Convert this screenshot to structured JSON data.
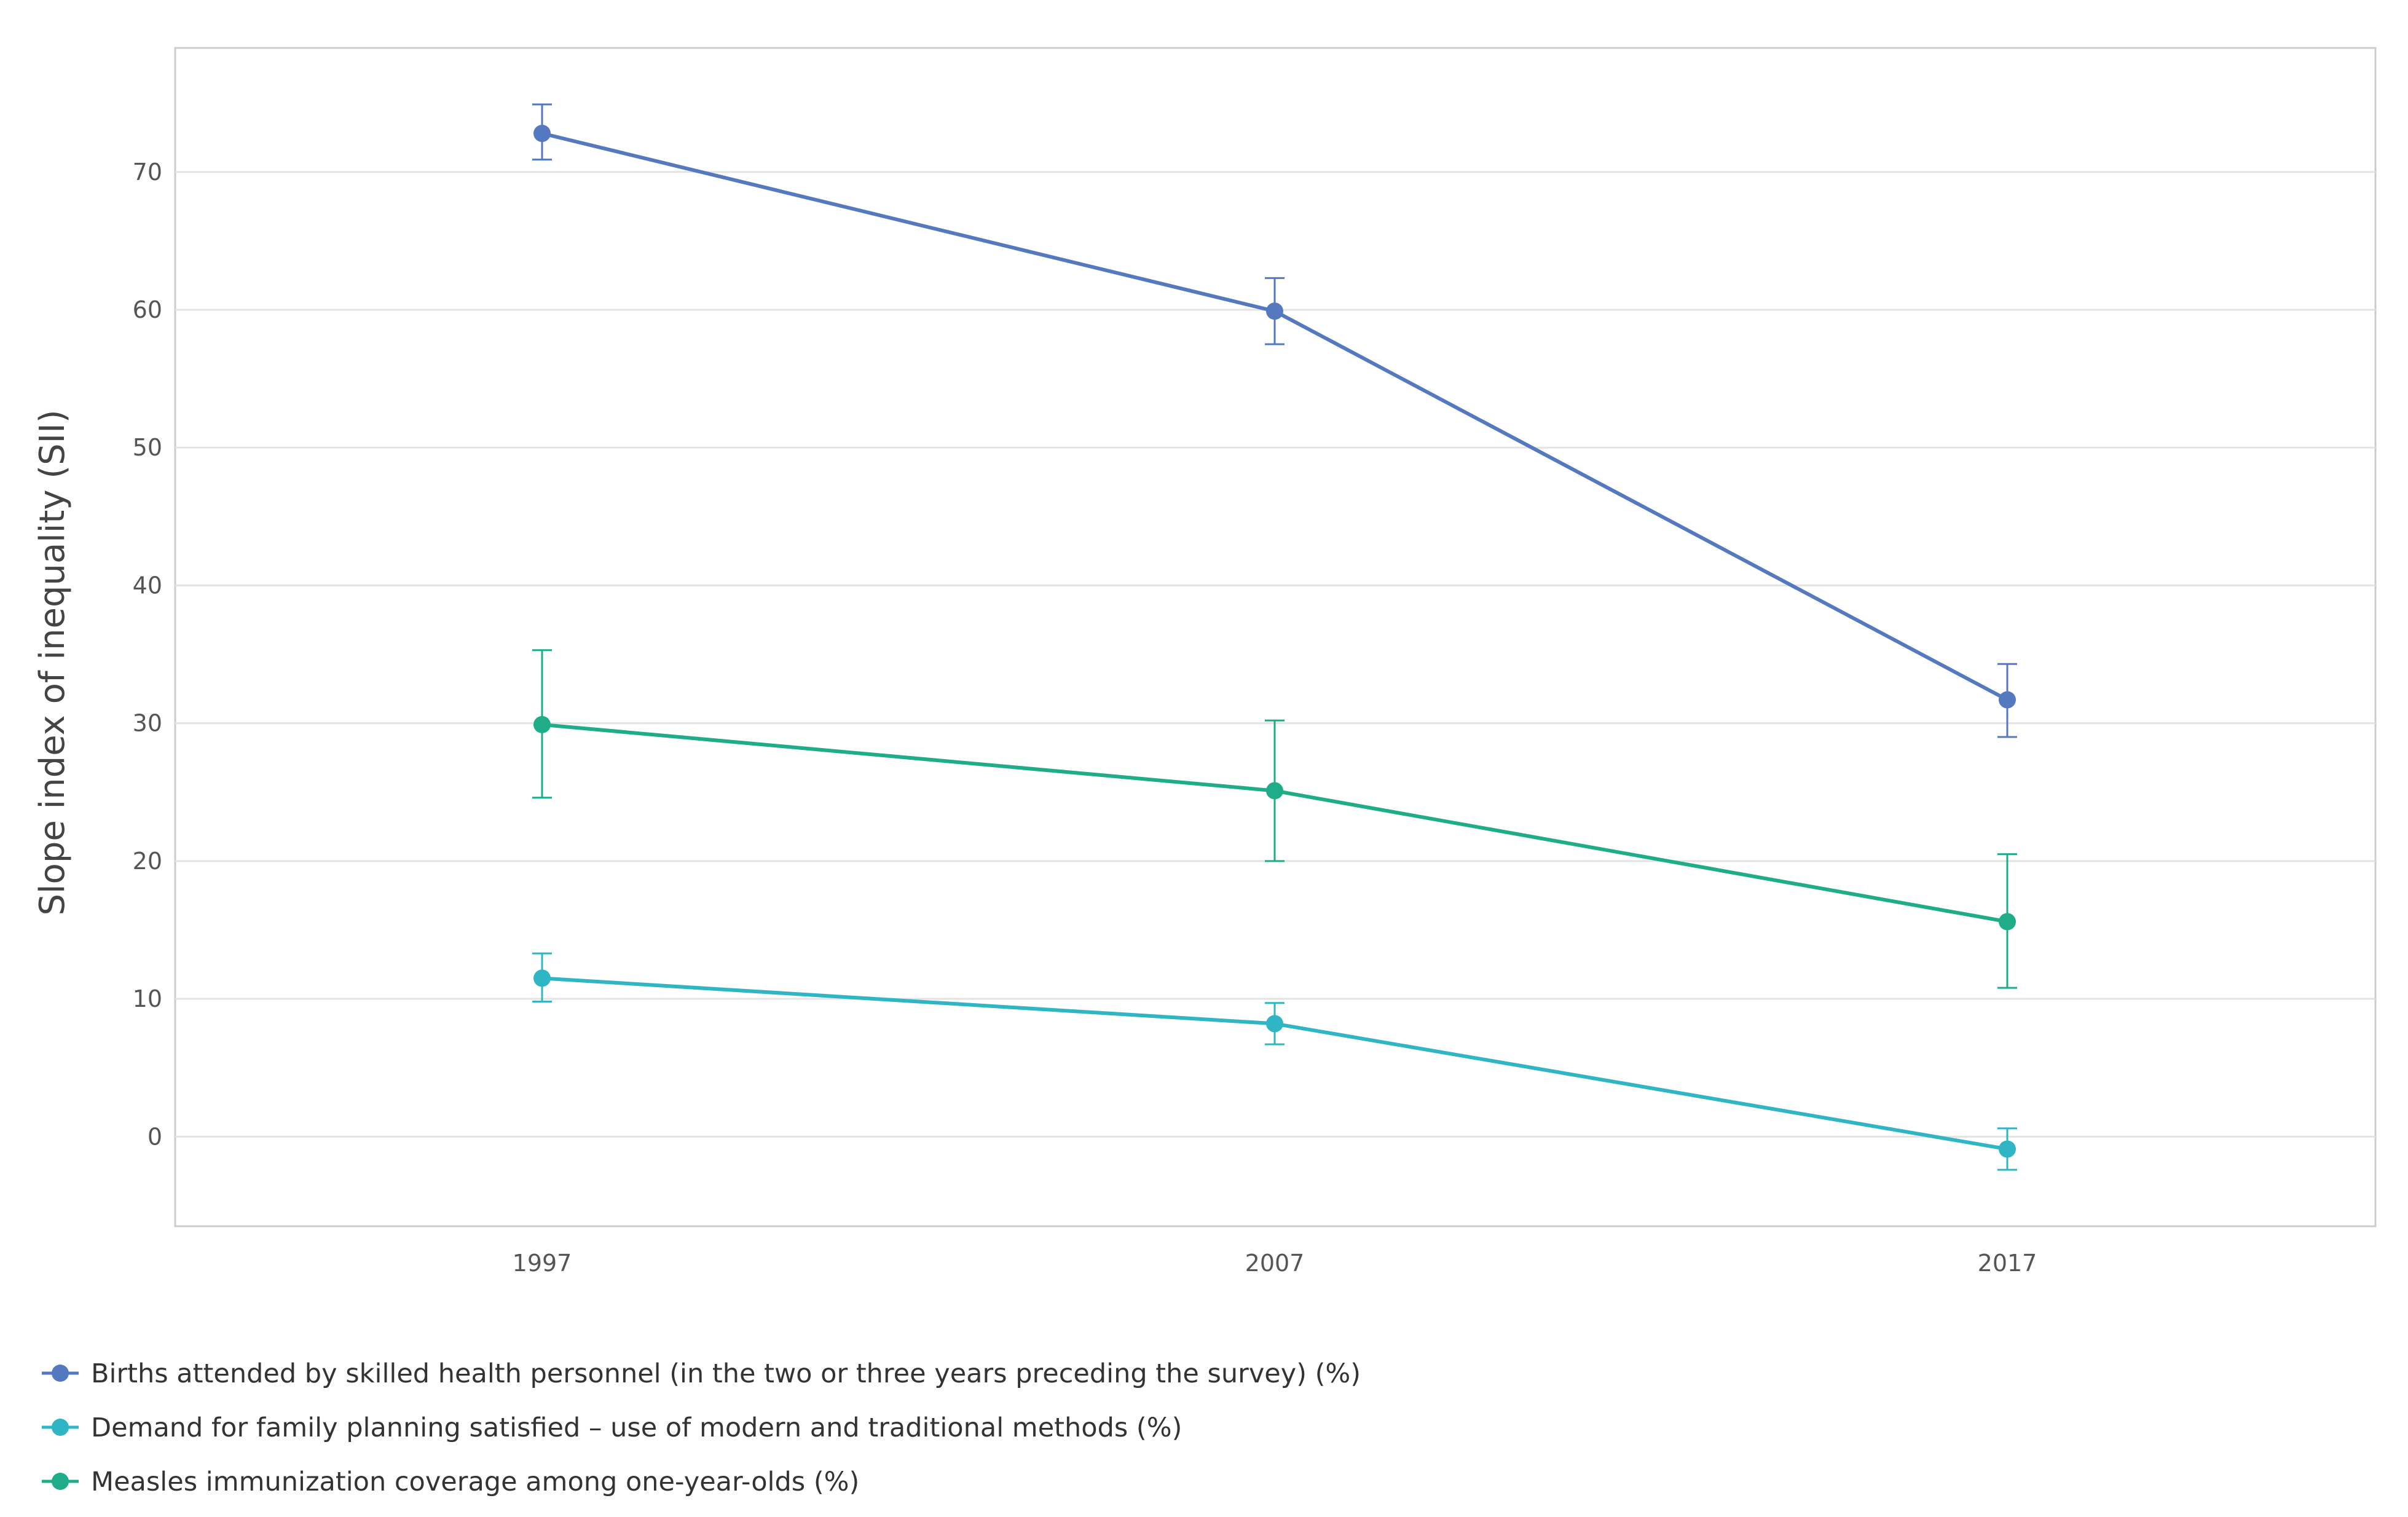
{
  "chart_data": {
    "type": "line",
    "x": [
      "1997",
      "2007",
      "2017"
    ],
    "ylabel": "Slope index of inequality (SII)",
    "ylim": [
      -6.5,
      79
    ],
    "yticks": [
      0,
      10,
      20,
      30,
      40,
      50,
      60,
      70
    ],
    "grid": true,
    "legend_position": "bottom-left",
    "series": [
      {
        "name": "Births attended by skilled health personnel (in the two or three years preceding the survey) (%)",
        "color": "#5479BE",
        "values": [
          72.8,
          59.9,
          31.7
        ],
        "error_low": [
          70.9,
          57.5,
          29.0
        ],
        "error_high": [
          74.9,
          62.3,
          34.3
        ]
      },
      {
        "name": "Demand for family planning satisfied – use of modern and traditional methods (%)",
        "color": "#2FB5C3",
        "values": [
          11.5,
          8.2,
          -0.9
        ],
        "error_low": [
          9.8,
          6.7,
          -2.4
        ],
        "error_high": [
          13.3,
          9.7,
          0.6
        ]
      },
      {
        "name": "Measles immunization coverage among one-year-olds (%)",
        "color": "#1EAD88",
        "values": [
          29.9,
          25.1,
          15.6
        ],
        "error_low": [
          24.6,
          20.0,
          10.8
        ],
        "error_high": [
          35.3,
          30.2,
          20.5
        ]
      }
    ]
  }
}
